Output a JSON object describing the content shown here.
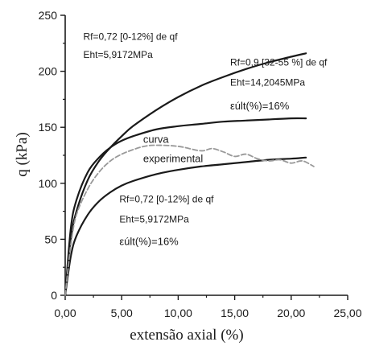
{
  "chart_data": {
    "type": "line",
    "xlabel": "extensão axial (%)",
    "ylabel": "q (kPa)",
    "xlim": [
      0,
      25
    ],
    "ylim": [
      0,
      250
    ],
    "x_ticks": [
      "0,00",
      "5,00",
      "10,00",
      "15,00",
      "20,00",
      "25,00"
    ],
    "y_ticks": [
      "0",
      "50",
      "100",
      "150",
      "200",
      "250"
    ],
    "grid": false,
    "legend": "none",
    "series": [
      {
        "style": "solid",
        "color": "#1a1a1a",
        "x": [
          0,
          0.5,
          1,
          2,
          3,
          4,
          5,
          6,
          8,
          10,
          12,
          14,
          16,
          18,
          20,
          21.3
        ],
        "y": [
          0,
          50,
          75,
          103,
          120,
          132,
          142,
          151,
          165,
          177,
          187,
          195,
          202,
          208,
          213,
          216
        ]
      },
      {
        "style": "solid",
        "color": "#1a1a1a",
        "x": [
          0,
          0.5,
          1,
          2,
          3,
          4,
          5,
          6,
          8,
          10,
          12,
          14,
          16,
          18,
          20,
          21.3
        ],
        "y": [
          0,
          60,
          85,
          110,
          123,
          132,
          138,
          142,
          148,
          151,
          153,
          155,
          156,
          157,
          158,
          158
        ]
      },
      {
        "style": "solid",
        "color": "#1a1a1a",
        "x": [
          0,
          0.5,
          1,
          2,
          3,
          4,
          5,
          6,
          8,
          10,
          12,
          14,
          16,
          18,
          20,
          21.3
        ],
        "y": [
          0,
          35,
          53,
          72,
          84,
          92,
          98,
          102,
          108,
          112,
          115,
          117,
          119,
          121,
          122,
          123
        ]
      },
      {
        "style": "dashed",
        "color": "#999999",
        "x": [
          0,
          0.5,
          1,
          2,
          3,
          4,
          5,
          6,
          7,
          8,
          10,
          12,
          13,
          14,
          15,
          16,
          17,
          18,
          19,
          20,
          21,
          22
        ],
        "y": [
          0,
          45,
          72,
          95,
          110,
          120,
          126,
          130,
          133,
          134,
          133,
          129,
          131,
          128,
          124,
          126,
          122,
          120,
          121,
          118,
          120,
          115
        ]
      }
    ],
    "annotations": [
      {
        "text": "Rf=0,72 [0-12%] de qf",
        "x": 1.6,
        "y": 228
      },
      {
        "text": "Eht=5,9172MPa",
        "x": 1.6,
        "y": 212
      },
      {
        "text": "Rf=0,9 [32-55 %] de qf",
        "x": 14.6,
        "y": 205
      },
      {
        "text": "Eht=14,2045MPa",
        "x": 14.6,
        "y": 187
      },
      {
        "text": "εúlt(%)=16%",
        "x": 14.6,
        "y": 166
      },
      {
        "text": "curva",
        "x": 6.9,
        "y": 136
      },
      {
        "text": "experimental",
        "x": 6.9,
        "y": 119
      },
      {
        "text": "Rf=0,72 [0-12%] de qf",
        "x": 4.8,
        "y": 83
      },
      {
        "text": "Eht=5,9172MPa",
        "x": 4.8,
        "y": 65
      },
      {
        "text": "εúlt(%)=16%",
        "x": 4.8,
        "y": 45
      }
    ]
  }
}
